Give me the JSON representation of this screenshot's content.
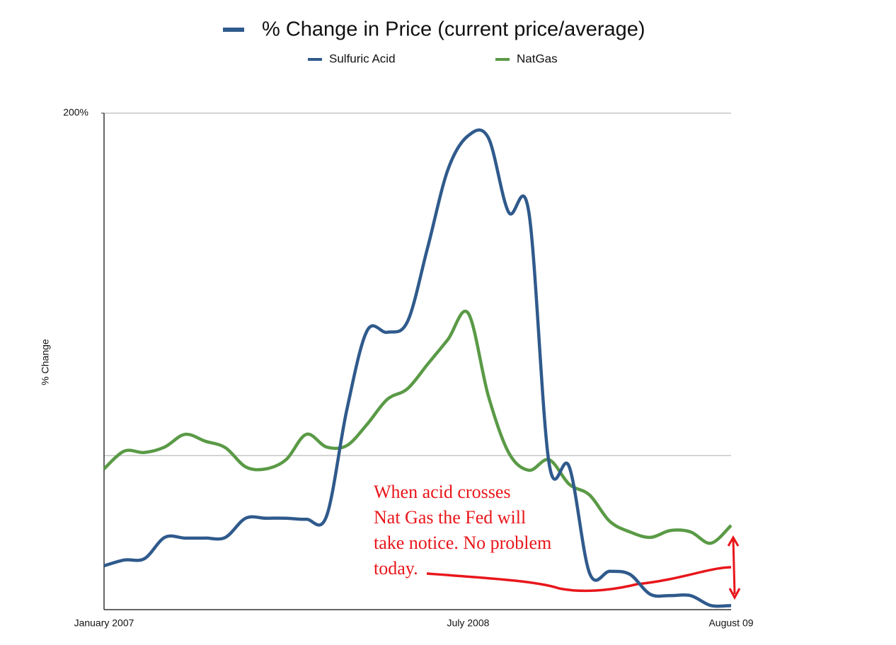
{
  "chart_data": {
    "type": "line",
    "title": "% Change in Price (current price/average)",
    "title_marker_color": "#2f5a8c",
    "y_label": "% Change",
    "categories": [
      "January 2007",
      null,
      null,
      null,
      null,
      null,
      null,
      null,
      null,
      null,
      null,
      null,
      null,
      null,
      null,
      null,
      null,
      null,
      "July 2008",
      null,
      null,
      null,
      null,
      null,
      null,
      null,
      null,
      null,
      null,
      null,
      null,
      "August 09"
    ],
    "series": [
      {
        "name": "Sulfuric Acid",
        "color": "#2f5a8c",
        "values": [
          67.8,
          69.5,
          69.9,
          76.1,
          75.9,
          75.9,
          76.1,
          81.7,
          81.7,
          81.7,
          81.4,
          82.3,
          113.3,
          136.4,
          136.0,
          139.1,
          160.8,
          183.5,
          193.4,
          192.8,
          171.1,
          171.1,
          97.8,
          96.7,
          65.7,
          66.2,
          65.3,
          59.5,
          59.1,
          59.1,
          56.2,
          56.2
        ]
      },
      {
        "name": "NatGas",
        "color": "#5a9a46",
        "values": [
          96.1,
          101.3,
          100.9,
          102.5,
          106.2,
          104.2,
          102.3,
          96.7,
          96.1,
          98.8,
          106.2,
          102.5,
          102.9,
          109.1,
          116.4,
          119.5,
          126.7,
          133.9,
          141.6,
          117.4,
          100.9,
          95.7,
          98.8,
          91.6,
          88.5,
          80.8,
          77.7,
          76.1,
          78.1,
          77.7,
          74.4,
          79.6
        ]
      }
    ],
    "ylim": [
      55,
      200
    ],
    "yticks": [
      {
        "value": 200,
        "label": "200%"
      }
    ],
    "ygrid": [
      100,
      200
    ],
    "annotation": {
      "lines": [
        "When acid crosses",
        "Nat Gas the Fed will",
        "take notice. No problem",
        "today."
      ],
      "color": "#e8161b"
    }
  }
}
